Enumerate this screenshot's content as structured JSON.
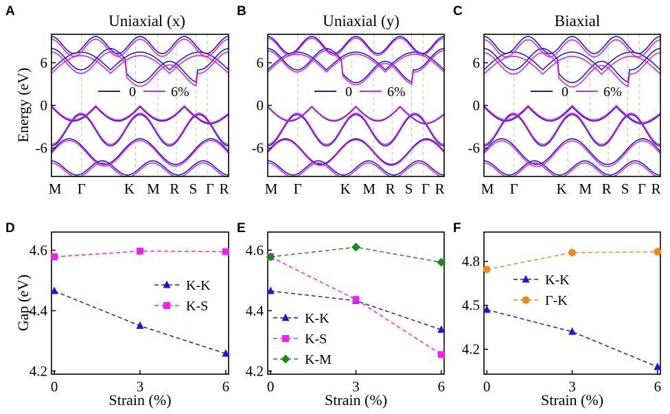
{
  "figure": {
    "panels": [
      "A",
      "B",
      "C",
      "D",
      "E",
      "F"
    ]
  },
  "band_panels": [
    {
      "letter": "A",
      "title": "Uniaxial (x)",
      "ylabel": "Energy (eV)",
      "ylim": [
        -10,
        10
      ],
      "yticks": [
        "6",
        "0",
        "-6"
      ],
      "ytick_values": [
        6,
        0,
        -6
      ],
      "kpoints": [
        "M",
        "Γ",
        "K",
        "M",
        "R",
        "S",
        "Γ",
        "R"
      ],
      "legend": [
        "0",
        "6%"
      ],
      "colors": {
        "unstrained": "#1a1ad6",
        "strained": "#e020e0"
      }
    },
    {
      "letter": "B",
      "title": "Uniaxial (y)",
      "ylabel": "",
      "ylim": [
        -10,
        10
      ],
      "yticks": [
        "6",
        "0",
        "-6"
      ],
      "ytick_values": [
        6,
        0,
        -6
      ],
      "kpoints": [
        "M",
        "Γ",
        "K",
        "M",
        "R",
        "S",
        "Γ",
        "R"
      ],
      "legend": [
        "0",
        "6%"
      ],
      "colors": {
        "unstrained": "#1a1ad6",
        "strained": "#e020e0"
      }
    },
    {
      "letter": "C",
      "title": "Biaxial",
      "ylabel": "",
      "ylim": [
        -10,
        10
      ],
      "yticks": [
        "6",
        "0",
        "-6"
      ],
      "ytick_values": [
        6,
        0,
        -6
      ],
      "kpoints": [
        "M",
        "Γ",
        "K",
        "M",
        "R",
        "S",
        "Γ",
        "R"
      ],
      "legend": [
        "0",
        "6%"
      ],
      "colors": {
        "unstrained": "#1a1ad6",
        "strained": "#e020e0"
      }
    }
  ],
  "chart_data": [
    {
      "type": "line",
      "panel": "D",
      "title": "",
      "xlabel": "Strain (%)",
      "ylabel": "Gap (eV)",
      "x": [
        0,
        3,
        6
      ],
      "xticks": [
        "0",
        "3",
        "6"
      ],
      "xlim": [
        -0.1,
        6.1
      ],
      "ylim": [
        4.19,
        4.66
      ],
      "ytick_values": [
        4.2,
        4.4,
        4.6
      ],
      "yticks": [
        "4.2",
        "4.4",
        "4.6"
      ],
      "series": [
        {
          "name": "K-K",
          "values": [
            4.465,
            4.35,
            4.258
          ],
          "color": "#1a1ad6",
          "marker": "triangle"
        },
        {
          "name": "K-S",
          "values": [
            4.578,
            4.597,
            4.595
          ],
          "color": "#f020e8",
          "marker": "square"
        }
      ],
      "legend": "right"
    },
    {
      "type": "line",
      "panel": "E",
      "title": "",
      "xlabel": "Strain (%)",
      "ylabel": "",
      "x": [
        0,
        3,
        6
      ],
      "xticks": [
        "0",
        "3",
        "6"
      ],
      "xlim": [
        -0.1,
        6.1
      ],
      "ylim": [
        4.19,
        4.66
      ],
      "ytick_values": [
        4.2,
        4.4,
        4.6
      ],
      "yticks": [
        "4.2",
        "4.4",
        "4.6"
      ],
      "series": [
        {
          "name": "K-K",
          "values": [
            4.465,
            4.433,
            4.337
          ],
          "color": "#1a1ad6",
          "marker": "triangle"
        },
        {
          "name": "K-S",
          "values": [
            4.578,
            4.437,
            4.255
          ],
          "color": "#f020e8",
          "marker": "square"
        },
        {
          "name": "K-M",
          "values": [
            4.578,
            4.61,
            4.56
          ],
          "color": "#1a8a1a",
          "marker": "diamond"
        }
      ],
      "legend": "bottom-left"
    },
    {
      "type": "line",
      "panel": "F",
      "title": "",
      "xlabel": "Strain (%)",
      "ylabel": "",
      "x": [
        0,
        3,
        6
      ],
      "xticks": [
        "0",
        "3",
        "6"
      ],
      "xlim": [
        -0.1,
        6.1
      ],
      "ylim": [
        4.03,
        5.0
      ],
      "ytick_values": [
        4.2,
        4.5,
        4.8
      ],
      "yticks": [
        "4.2",
        "4.5",
        "4.8"
      ],
      "series": [
        {
          "name": "K-K",
          "values": [
            4.47,
            4.32,
            4.08
          ],
          "color": "#1a1ad6",
          "marker": "triangle"
        },
        {
          "name": "Γ-K",
          "values": [
            4.745,
            4.86,
            4.865
          ],
          "color": "#f08a20",
          "marker": "circle"
        }
      ],
      "legend": "middle-left"
    }
  ]
}
